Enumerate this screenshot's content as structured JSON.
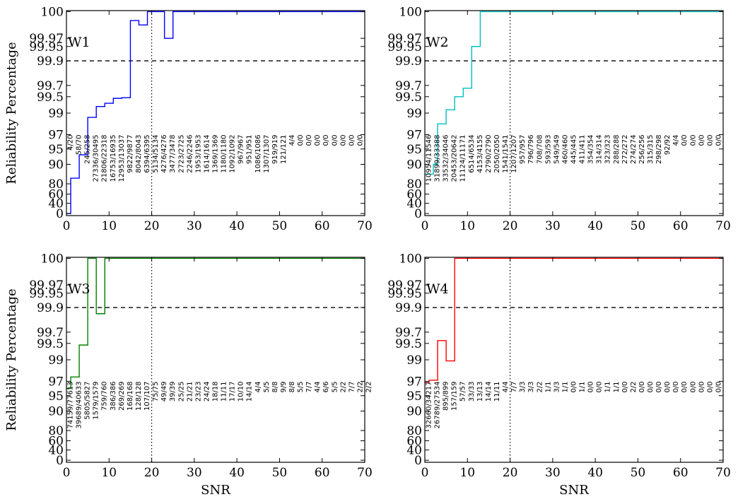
{
  "chart_data": [
    {
      "type": "line",
      "panel_label": "W1",
      "color": "#0000ff",
      "xlabel": "",
      "ylabel": "Reliability Percentage",
      "xlim": [
        0,
        70
      ],
      "x_ticks": [
        "0",
        "10",
        "20",
        "30",
        "40",
        "50",
        "60",
        "70"
      ],
      "y_ticks": [
        "0",
        "40",
        "60",
        "80",
        "90",
        "95",
        "97",
        "99",
        "99.5",
        "99.7",
        "99.9",
        "99.95",
        "99.97",
        "100"
      ],
      "reference_line": 99.9,
      "vertical_line_x": 20,
      "step_x": [
        0,
        1,
        2,
        3,
        4,
        5,
        6,
        7,
        8,
        9,
        10,
        11,
        12,
        13,
        14,
        15,
        16,
        17,
        18,
        19,
        20,
        21,
        22,
        23,
        24,
        25,
        26,
        27,
        28,
        29,
        30,
        31,
        32,
        33,
        34,
        35,
        36,
        37,
        38,
        39,
        40,
        41,
        42,
        43,
        44,
        45,
        46,
        47,
        48,
        49,
        50,
        51,
        52,
        53,
        54,
        55,
        56,
        57,
        58,
        59,
        60,
        61,
        62,
        63,
        64,
        65,
        66,
        67,
        68,
        69,
        70
      ],
      "step_y": [
        0,
        82.9,
        82.9,
        93.1,
        93.1,
        98.6,
        98.6,
        99.2,
        99.2,
        99.3,
        99.3,
        99.45,
        99.45,
        99.47,
        99.47,
        99.99,
        99.99,
        99.985,
        99.985,
        100,
        100,
        100,
        100,
        99.97,
        99.97,
        100,
        100,
        100,
        100,
        100,
        100,
        100,
        100,
        100,
        100,
        100,
        100,
        100,
        100,
        100,
        100,
        100,
        100,
        100,
        100,
        100,
        100,
        100,
        100,
        100,
        100,
        100,
        100,
        100,
        100,
        100,
        100,
        100,
        100,
        100,
        100,
        100,
        100,
        100,
        100,
        100,
        100,
        100,
        100,
        100,
        100
      ],
      "count_labels": [
        "4/20",
        "58/70",
        "245/258",
        "27336/30495",
        "21806/22318",
        "16753/16935",
        "12953/13037",
        "9822/9877",
        "8042/8043",
        "6394/6395",
        "5134/5134",
        "4276/4276",
        "3477/3478",
        "2723/2725",
        "2246/2246",
        "1953/1953",
        "1614/1614",
        "1369/1369",
        "1180/1180",
        "1092/1092",
        "967/967",
        "951/951",
        "1086/1086",
        "1307/1307",
        "919/919",
        "121/121",
        "4/4",
        "0/0",
        "0/0",
        "0/0",
        "0/0",
        "0/0",
        "0/0",
        "0/0",
        "0/0"
      ]
    },
    {
      "type": "line",
      "panel_label": "W2",
      "color": "#00bfbf",
      "xlabel": "",
      "ylabel": "",
      "xlim": [
        0,
        70
      ],
      "x_ticks": [
        "0",
        "10",
        "20",
        "30",
        "40",
        "50",
        "60",
        "70"
      ],
      "y_ticks": [
        "0",
        "40",
        "60",
        "80",
        "90",
        "95",
        "97",
        "99",
        "99.5",
        "99.7",
        "99.9",
        "99.95",
        "99.97",
        "100"
      ],
      "reference_line": 99.9,
      "vertical_line_x": 20,
      "step_x": [
        0,
        1,
        2,
        3,
        4,
        5,
        6,
        7,
        8,
        9,
        10,
        11,
        12,
        13,
        14,
        15,
        16,
        17,
        18,
        19,
        20,
        21,
        22,
        23,
        24,
        25,
        26,
        27,
        28,
        29,
        30,
        31,
        32,
        33,
        34,
        35,
        36,
        37,
        38,
        39,
        40,
        41,
        42,
        43,
        44,
        45,
        46,
        47,
        48,
        49,
        50,
        51,
        52,
        53,
        54,
        55,
        56,
        57,
        58,
        59,
        60,
        61,
        62,
        63,
        64,
        65,
        66,
        67,
        68,
        69,
        70
      ],
      "step_y": [
        85,
        85,
        90,
        98,
        98,
        99.1,
        99.1,
        99.5,
        99.5,
        99.65,
        99.65,
        99.95,
        99.95,
        100,
        100,
        100,
        100,
        100,
        100,
        100,
        100,
        100,
        100,
        100,
        100,
        100,
        100,
        100,
        100,
        100,
        100,
        100,
        100,
        100,
        100,
        100,
        100,
        100,
        100,
        100,
        100,
        100,
        100,
        100,
        100,
        100,
        100,
        100,
        100,
        100,
        100,
        100,
        100,
        100,
        100,
        100,
        100,
        100,
        100,
        100,
        100,
        100,
        100,
        100,
        100,
        100,
        100,
        100,
        100,
        100,
        100
      ],
      "count_labels": [
        "10954/11546",
        "31899/33388",
        "33532/34046",
        "20453/20642",
        "11124/11171",
        "6514/6534",
        "4153/4155",
        "2790/2790",
        "2050/2050",
        "1541/1541",
        "1207/1207",
        "957/957",
        "796/796",
        "708/708",
        "593/593",
        "549/549",
        "460/460",
        "445/445",
        "411/411",
        "354/354",
        "314/314",
        "323/323",
        "288/288",
        "272/272",
        "274/274",
        "256/256",
        "315/315",
        "298/298",
        "92/92",
        "4/4",
        "0/0",
        "0/0",
        "0/0",
        "0/0",
        "0/0"
      ]
    },
    {
      "type": "line",
      "panel_label": "W3",
      "color": "#008000",
      "xlabel": "SNR",
      "ylabel": "Reliability Percentage",
      "xlim": [
        0,
        70
      ],
      "x_ticks": [
        "0",
        "10",
        "20",
        "30",
        "40",
        "50",
        "60",
        "70"
      ],
      "y_ticks": [
        "0",
        "40",
        "60",
        "80",
        "90",
        "95",
        "97",
        "99",
        "99.5",
        "99.7",
        "99.9",
        "99.95",
        "99.97",
        "100"
      ],
      "reference_line": 99.9,
      "vertical_line_x": 20,
      "step_x": [
        0,
        1,
        2,
        3,
        4,
        5,
        6,
        7,
        8,
        9,
        10,
        11,
        12,
        13,
        14,
        15,
        16,
        17,
        18,
        19,
        20,
        21,
        22,
        23,
        24,
        25,
        26,
        27,
        28,
        29,
        30,
        31,
        32,
        33,
        34,
        35,
        36,
        37,
        38,
        39,
        40,
        41,
        42,
        43,
        44,
        45,
        46,
        47,
        48,
        49,
        50,
        51,
        52,
        53,
        54,
        55,
        56,
        57,
        58,
        59,
        60,
        61,
        62,
        63,
        64,
        65,
        66,
        67,
        68,
        69,
        70
      ],
      "step_y": [
        96,
        97.4,
        97.4,
        99.45,
        99.45,
        100,
        100,
        99.85,
        99.85,
        100,
        100,
        100,
        100,
        100,
        100,
        100,
        100,
        100,
        100,
        100,
        100,
        100,
        100,
        100,
        100,
        100,
        100,
        100,
        100,
        100,
        100,
        100,
        100,
        100,
        100,
        100,
        100,
        100,
        100,
        100,
        100,
        100,
        100,
        100,
        100,
        100,
        100,
        100,
        100,
        100,
        100,
        100,
        100,
        100,
        100,
        100,
        100,
        100,
        100,
        100,
        100,
        100,
        100,
        100,
        100,
        100,
        100,
        100,
        100,
        100,
        100
      ],
      "count_labels": [
        "74159/77613",
        "39689/40633",
        "5805/5827",
        "1579/1579",
        "759/760",
        "386/386",
        "269/269",
        "168/168",
        "128/128",
        "107/107",
        "75/75",
        "49/49",
        "39/39",
        "25/25",
        "21/21",
        "23/23",
        "24/24",
        "18/18",
        "11/11",
        "17/17",
        "10/10",
        "14/14",
        "4/4",
        "5/5",
        "8/8",
        "9/9",
        "8/8",
        "5/5",
        "7/7",
        "4/4",
        "6/6",
        "5/5",
        "2/2",
        "7/7",
        "2/2",
        "2/2"
      ]
    },
    {
      "type": "line",
      "panel_label": "W4",
      "color": "#ff0000",
      "xlabel": "SNR",
      "ylabel": "",
      "xlim": [
        0,
        70
      ],
      "x_ticks": [
        "0",
        "10",
        "20",
        "30",
        "40",
        "50",
        "60",
        "70"
      ],
      "y_ticks": [
        "0",
        "40",
        "60",
        "80",
        "90",
        "95",
        "97",
        "99",
        "99.5",
        "99.7",
        "99.9",
        "99.95",
        "99.97",
        "100"
      ],
      "reference_line": 99.9,
      "vertical_line_x": 20,
      "step_x": [
        0,
        1,
        2,
        3,
        4,
        5,
        6,
        7,
        8,
        9,
        10,
        11,
        12,
        13,
        14,
        15,
        16,
        17,
        18,
        19,
        20,
        21,
        22,
        23,
        24,
        25,
        26,
        27,
        28,
        29,
        30,
        31,
        32,
        33,
        34,
        35,
        36,
        37,
        38,
        39,
        40,
        41,
        42,
        43,
        44,
        45,
        46,
        47,
        48,
        49,
        50,
        51,
        52,
        53,
        54,
        55,
        56,
        57,
        58,
        59,
        60,
        61,
        62,
        63,
        64,
        65,
        66,
        67,
        68,
        69,
        70
      ],
      "step_y": [
        96.8,
        97.1,
        97.1,
        99.55,
        99.55,
        98.9,
        98.9,
        100,
        100,
        100,
        100,
        100,
        100,
        100,
        100,
        100,
        100,
        100,
        100,
        100,
        100,
        100,
        100,
        100,
        100,
        100,
        100,
        100,
        100,
        100,
        100,
        100,
        100,
        100,
        100,
        100,
        100,
        100,
        100,
        100,
        100,
        100,
        100,
        100,
        100,
        100,
        100,
        100,
        100,
        100,
        100,
        100,
        100,
        100,
        100,
        100,
        100,
        100,
        100,
        100,
        100,
        100,
        100,
        100,
        100,
        100,
        100,
        100,
        100,
        100,
        100
      ],
      "count_labels": [
        "32660/34217",
        "26789/27534",
        "895/899",
        "157/159",
        "57/57",
        "33/33",
        "13/13",
        "14/14",
        "11/11",
        "4/4",
        "7/7",
        "3/3",
        "3/3",
        "2/2",
        "1/1",
        "3/3",
        "1/1",
        "0/0",
        "1/1",
        "0/0",
        "0/0",
        "1/1",
        "1/1",
        "0/0",
        "2/2",
        "0/0",
        "0/0",
        "0/0",
        "0/0",
        "0/0",
        "0/0",
        "0/0",
        "0/0",
        "0/0",
        "0/0"
      ]
    }
  ]
}
